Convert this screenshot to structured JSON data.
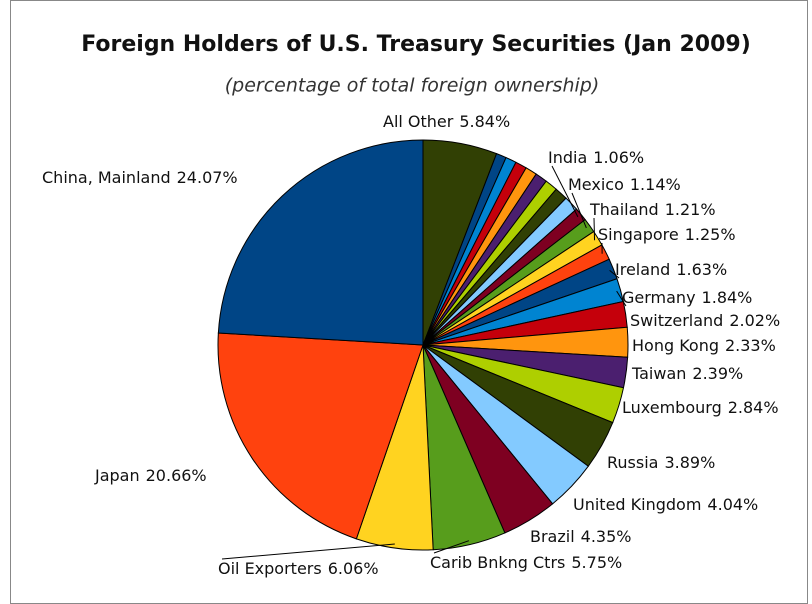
{
  "chart_data": {
    "type": "pie",
    "title": "Foreign Holders of U.S. Treasury Securities (Jan 2009)",
    "subtitle": "(percentage of total foreign ownership)",
    "categories": [
      "All Other",
      null,
      null,
      null,
      null,
      null,
      null,
      null,
      null,
      "India",
      "Mexico",
      "Thailand",
      "Singapore",
      "Ireland",
      "Germany",
      "Switzerland",
      "Hong Kong",
      "Taiwan",
      "Luxembourg",
      "Russia",
      "United Kingdom",
      "Brazil",
      "Carib Bnkng Ctrs",
      "Oil Exporters",
      "Japan",
      "China, Mainland"
    ],
    "values": [
      5.84,
      0.8,
      0.85,
      0.9,
      0.92,
      0.95,
      1.0,
      1.03,
      1.18,
      1.06,
      1.14,
      1.21,
      1.25,
      1.63,
      1.84,
      2.02,
      2.33,
      2.39,
      2.84,
      3.89,
      4.04,
      4.35,
      5.75,
      6.06,
      20.66,
      24.07
    ],
    "value_labels": [
      "5.84%",
      null,
      null,
      null,
      null,
      null,
      null,
      null,
      null,
      "1.06%",
      "1.14%",
      "1.21%",
      "1.25%",
      "1.63%",
      "1.84%",
      "2.02%",
      "2.33%",
      "2.39%",
      "2.84%",
      "3.89%",
      "4.04%",
      "4.35%",
      "5.75%",
      "6.06%",
      "20.66%",
      "24.07%"
    ],
    "colors": [
      "#314004",
      "#004586",
      "#0084d1",
      "#c5000b",
      "#ff950e",
      "#4b1f6f",
      "#aecf00",
      "#314004",
      "#83caff",
      "#7e0021",
      "#579d1c",
      "#ffd320",
      "#ff420e",
      "#004586",
      "#0084d1",
      "#c5000b",
      "#ff950e",
      "#4b1f6f",
      "#aecf00",
      "#314004",
      "#83caff",
      "#7e0021",
      "#579d1c",
      "#ffd320",
      "#ff420e",
      "#004586"
    ]
  }
}
